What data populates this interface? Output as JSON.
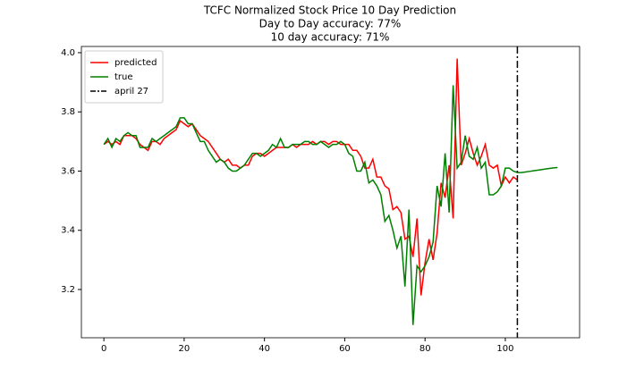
{
  "chart_data": {
    "type": "line",
    "title": [
      "TCFC Normalized Stock Price 10 Day Prediction",
      "Day to Day accuracy: 77%",
      "10 day accuracy: 71%"
    ],
    "x": [
      0,
      1,
      2,
      3,
      4,
      5,
      6,
      7,
      8,
      9,
      10,
      11,
      12,
      13,
      14,
      15,
      16,
      17,
      18,
      19,
      20,
      21,
      22,
      23,
      24,
      25,
      26,
      27,
      28,
      29,
      30,
      31,
      32,
      33,
      34,
      35,
      36,
      37,
      38,
      39,
      40,
      41,
      42,
      43,
      44,
      45,
      46,
      47,
      48,
      49,
      50,
      51,
      52,
      53,
      54,
      55,
      56,
      57,
      58,
      59,
      60,
      61,
      62,
      63,
      64,
      65,
      66,
      67,
      68,
      69,
      70,
      71,
      72,
      73,
      74,
      75,
      76,
      77,
      78,
      79,
      80,
      81,
      82,
      83,
      84,
      85,
      86,
      87,
      88,
      89,
      90,
      91,
      92,
      93,
      94,
      95,
      96,
      97,
      98,
      99,
      100,
      101,
      102,
      103,
      104,
      105,
      106,
      107,
      108,
      109,
      110,
      111,
      112,
      113
    ],
    "series": [
      {
        "name": "predicted",
        "color": "#ff0000",
        "values": [
          3.69,
          3.7,
          3.69,
          3.7,
          3.69,
          3.72,
          3.72,
          3.72,
          3.71,
          3.69,
          3.68,
          3.67,
          3.7,
          3.7,
          3.69,
          3.71,
          3.72,
          3.73,
          3.74,
          3.77,
          3.76,
          3.75,
          3.76,
          3.74,
          3.72,
          3.71,
          3.7,
          3.68,
          3.66,
          3.64,
          3.63,
          3.64,
          3.62,
          3.62,
          3.61,
          3.62,
          3.62,
          3.65,
          3.66,
          3.66,
          3.65,
          3.66,
          3.67,
          3.68,
          3.68,
          3.68,
          3.68,
          3.69,
          3.68,
          3.69,
          3.69,
          3.69,
          3.7,
          3.69,
          3.7,
          3.7,
          3.69,
          3.7,
          3.7,
          3.69,
          3.69,
          3.69,
          3.67,
          3.67,
          3.65,
          3.61,
          3.61,
          3.64,
          3.58,
          3.58,
          3.55,
          3.54,
          3.47,
          3.48,
          3.46,
          3.37,
          3.38,
          3.31,
          3.44,
          3.18,
          3.29,
          3.37,
          3.3,
          3.39,
          3.56,
          3.51,
          3.62,
          3.44,
          3.98,
          3.62,
          3.66,
          3.71,
          3.66,
          3.62,
          3.65,
          3.69,
          3.62,
          3.61,
          3.62,
          3.55,
          3.58,
          3.56,
          3.58,
          3.57,
          null,
          null,
          null,
          null,
          null,
          null,
          null,
          null,
          null,
          null
        ]
      },
      {
        "name": "true",
        "color": "#008000",
        "values": [
          3.69,
          3.71,
          3.68,
          3.71,
          3.7,
          3.72,
          3.73,
          3.72,
          3.72,
          3.68,
          3.68,
          3.68,
          3.71,
          3.7,
          3.71,
          3.72,
          3.73,
          3.74,
          3.75,
          3.78,
          3.78,
          3.76,
          3.76,
          3.73,
          3.7,
          3.7,
          3.67,
          3.65,
          3.63,
          3.64,
          3.63,
          3.61,
          3.6,
          3.6,
          3.61,
          3.62,
          3.64,
          3.66,
          3.66,
          3.65,
          3.66,
          3.67,
          3.69,
          3.68,
          3.71,
          3.68,
          3.68,
          3.69,
          3.69,
          3.69,
          3.7,
          3.7,
          3.69,
          3.69,
          3.7,
          3.69,
          3.68,
          3.69,
          3.69,
          3.7,
          3.69,
          3.66,
          3.65,
          3.6,
          3.6,
          3.63,
          3.56,
          3.57,
          3.55,
          3.52,
          3.43,
          3.45,
          3.4,
          3.34,
          3.38,
          3.21,
          3.47,
          3.08,
          3.28,
          3.26,
          3.28,
          3.31,
          3.36,
          3.55,
          3.48,
          3.66,
          3.46,
          3.89,
          3.61,
          3.63,
          3.72,
          3.65,
          3.64,
          3.68,
          3.61,
          3.63,
          3.52,
          3.52,
          3.53,
          3.55,
          3.61,
          3.61,
          3.6,
          3.595,
          3.595,
          3.597,
          3.599,
          3.601,
          3.603,
          3.605,
          3.607,
          3.609,
          3.611,
          3.612
        ]
      }
    ],
    "vline": {
      "x": 103,
      "name": "april 27",
      "color": "#000000"
    },
    "xlim": [
      -5.6,
      118.5
    ],
    "ylim": [
      3.037,
      4.021
    ],
    "xticks": [
      0,
      20,
      40,
      60,
      80,
      100
    ],
    "yticks": [
      3.2,
      3.4,
      3.6,
      3.8,
      {
        "value": 4,
        "label": "4.0"
      }
    ],
    "legend": "upper left"
  }
}
